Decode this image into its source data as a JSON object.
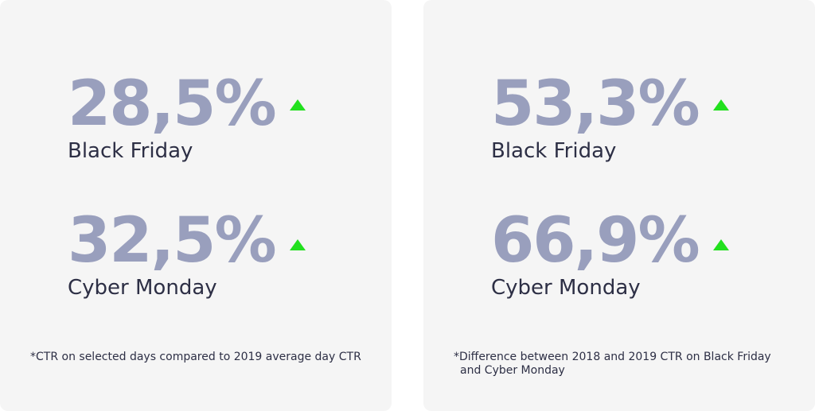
{
  "cards": [
    {
      "stats": [
        {
          "value": "28,5%",
          "label": "Black Friday"
        },
        {
          "value": "32,5%",
          "label": "Cyber Monday"
        }
      ],
      "footnote": [
        "*CTR on selected days compared to 2019 average day CTR"
      ]
    },
    {
      "stats": [
        {
          "value": "53,3%",
          "label": "Black Friday"
        },
        {
          "value": "66,9%",
          "label": "Cyber Monday"
        }
      ],
      "footnote": [
        "*Difference between 2018 and 2019 CTR on Black Friday",
        "and Cyber Monday"
      ]
    }
  ]
}
